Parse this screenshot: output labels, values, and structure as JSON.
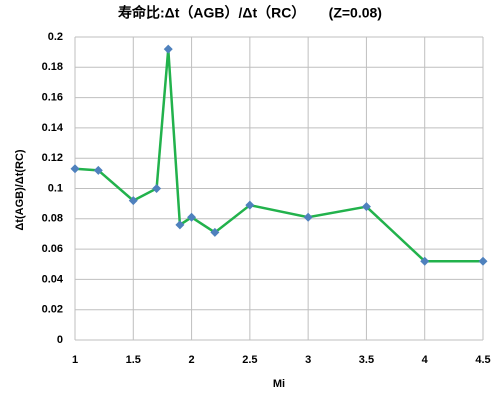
{
  "chart_data": {
    "type": "line",
    "title": "寿命比:Δt（AGB）/Δt（RC）      (Z=0.08)",
    "x_label": "Mi",
    "y_label": "Δt(AGB)/Δt(RC)",
    "x": [
      1,
      1.2,
      1.5,
      1.7,
      1.8,
      1.9,
      2,
      2.2,
      2.5,
      3,
      3.5,
      4,
      4.5
    ],
    "series": [
      {
        "color": "#22b24c",
        "marker_color": "#4f81bd",
        "values": [
          0.113,
          0.112,
          0.092,
          0.1,
          0.192,
          0.076,
          0.081,
          0.071,
          0.089,
          0.081,
          0.088,
          0.052,
          0.052
        ]
      }
    ],
    "xlim": [
      1,
      4.5
    ],
    "xticks": [
      1,
      1.5,
      2,
      2.5,
      3,
      3.5,
      4,
      4.5
    ],
    "ylim": [
      0,
      0.2
    ],
    "yticks": [
      0,
      0.02,
      0.04,
      0.06,
      0.08,
      0.1,
      0.12,
      0.14,
      0.16,
      0.18,
      0.2
    ],
    "grid": true
  }
}
